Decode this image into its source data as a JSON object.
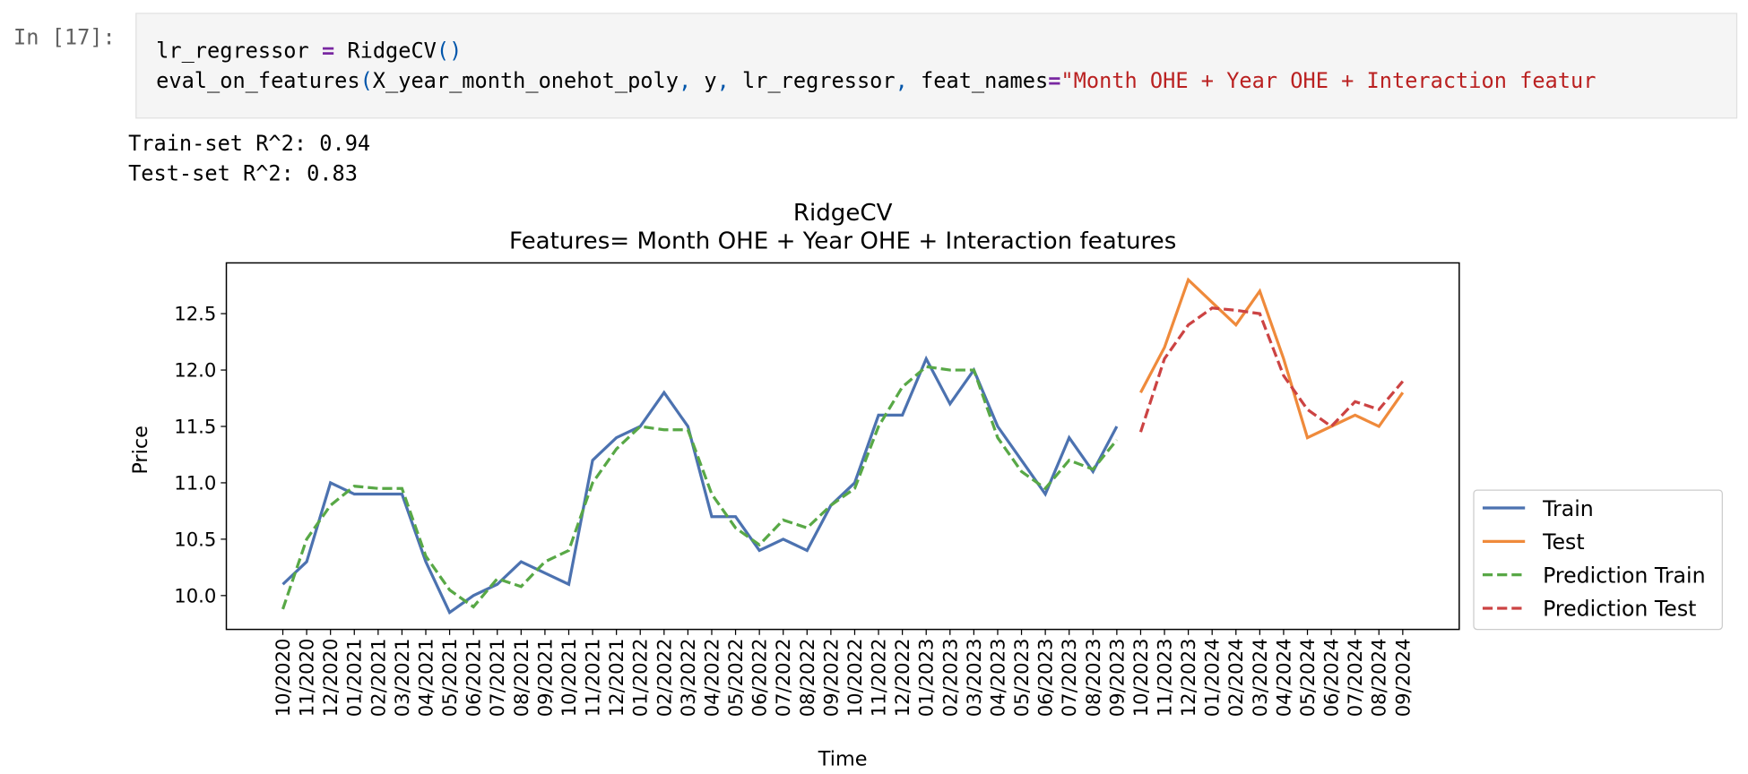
{
  "cell": {
    "prompt": "In [17]:",
    "code": [
      "lr_regressor = RidgeCV()",
      "eval_on_features(X_year_month_onehot_poly, y, lr_regressor, feat_names=\"Month OHE + Year OHE + Interaction featur"
    ],
    "output": [
      "Train-set R^2: 0.94",
      "Test-set R^2: 0.83"
    ]
  },
  "chart_data": {
    "type": "line",
    "title": "RidgeCV",
    "subtitle": "Features= Month OHE + Year OHE + Interaction features",
    "x_label": "Time",
    "y_label": "Price",
    "categories": [
      "10/2020",
      "11/2020",
      "12/2020",
      "01/2021",
      "02/2021",
      "03/2021",
      "04/2021",
      "05/2021",
      "06/2021",
      "07/2021",
      "08/2021",
      "09/2021",
      "10/2021",
      "11/2021",
      "12/2021",
      "01/2022",
      "02/2022",
      "03/2022",
      "04/2022",
      "05/2022",
      "06/2022",
      "07/2022",
      "08/2022",
      "09/2022",
      "10/2022",
      "11/2022",
      "12/2022",
      "01/2023",
      "02/2023",
      "03/2023",
      "04/2023",
      "05/2023",
      "06/2023",
      "07/2023",
      "08/2023",
      "09/2023",
      "10/2023",
      "11/2023",
      "12/2023",
      "01/2024",
      "02/2024",
      "03/2024",
      "04/2024",
      "05/2024",
      "06/2024",
      "07/2024",
      "08/2024",
      "09/2024"
    ],
    "series": [
      {
        "name": "Train",
        "color": "#4c72b0",
        "dashed": false,
        "values": [
          10.1,
          10.3,
          11.0,
          10.9,
          10.9,
          10.9,
          10.3,
          9.85,
          10.0,
          10.1,
          10.3,
          10.2,
          10.1,
          11.2,
          11.4,
          11.5,
          11.8,
          11.5,
          10.7,
          10.7,
          10.4,
          10.5,
          10.4,
          10.8,
          11.0,
          11.6,
          11.6,
          12.1,
          11.7,
          12.0,
          11.5,
          11.2,
          10.9,
          11.4,
          11.1,
          11.5,
          null,
          null,
          null,
          null,
          null,
          null,
          null,
          null,
          null,
          null,
          null,
          null
        ]
      },
      {
        "name": "Test",
        "color": "#ef8a3b",
        "dashed": false,
        "values": [
          null,
          null,
          null,
          null,
          null,
          null,
          null,
          null,
          null,
          null,
          null,
          null,
          null,
          null,
          null,
          null,
          null,
          null,
          null,
          null,
          null,
          null,
          null,
          null,
          null,
          null,
          null,
          null,
          null,
          null,
          null,
          null,
          null,
          null,
          null,
          null,
          11.8,
          12.2,
          12.8,
          12.6,
          12.4,
          12.7,
          12.1,
          11.4,
          11.5,
          11.6,
          11.5,
          11.8
        ]
      },
      {
        "name": "Prediction Train",
        "color": "#58a846",
        "dashed": true,
        "values": [
          9.88,
          10.5,
          10.8,
          10.97,
          10.95,
          10.95,
          10.35,
          10.05,
          9.9,
          10.15,
          10.08,
          10.3,
          10.4,
          11.0,
          11.3,
          11.5,
          11.47,
          11.47,
          10.9,
          10.6,
          10.45,
          10.67,
          10.6,
          10.8,
          10.95,
          11.5,
          11.85,
          12.03,
          12.0,
          12.0,
          11.4,
          11.1,
          10.95,
          11.2,
          11.12,
          11.38,
          null,
          null,
          null,
          null,
          null,
          null,
          null,
          null,
          null,
          null,
          null,
          null
        ]
      },
      {
        "name": "Prediction Test",
        "color": "#cc4343",
        "dashed": true,
        "values": [
          null,
          null,
          null,
          null,
          null,
          null,
          null,
          null,
          null,
          null,
          null,
          null,
          null,
          null,
          null,
          null,
          null,
          null,
          null,
          null,
          null,
          null,
          null,
          null,
          null,
          null,
          null,
          null,
          null,
          null,
          null,
          null,
          null,
          null,
          null,
          null,
          11.45,
          12.1,
          12.4,
          12.55,
          12.53,
          12.5,
          11.95,
          11.65,
          11.5,
          11.72,
          11.65,
          11.9
        ]
      }
    ],
    "ylim": [
      9.7,
      12.95
    ],
    "yticks": [
      {
        "value": 10,
        "label": "10.0"
      },
      10.5,
      {
        "value": 11,
        "label": "11.0"
      },
      11.5,
      {
        "value": 12,
        "label": "12.0"
      },
      12.5
    ],
    "grid": false,
    "legend": "outside lower right"
  }
}
